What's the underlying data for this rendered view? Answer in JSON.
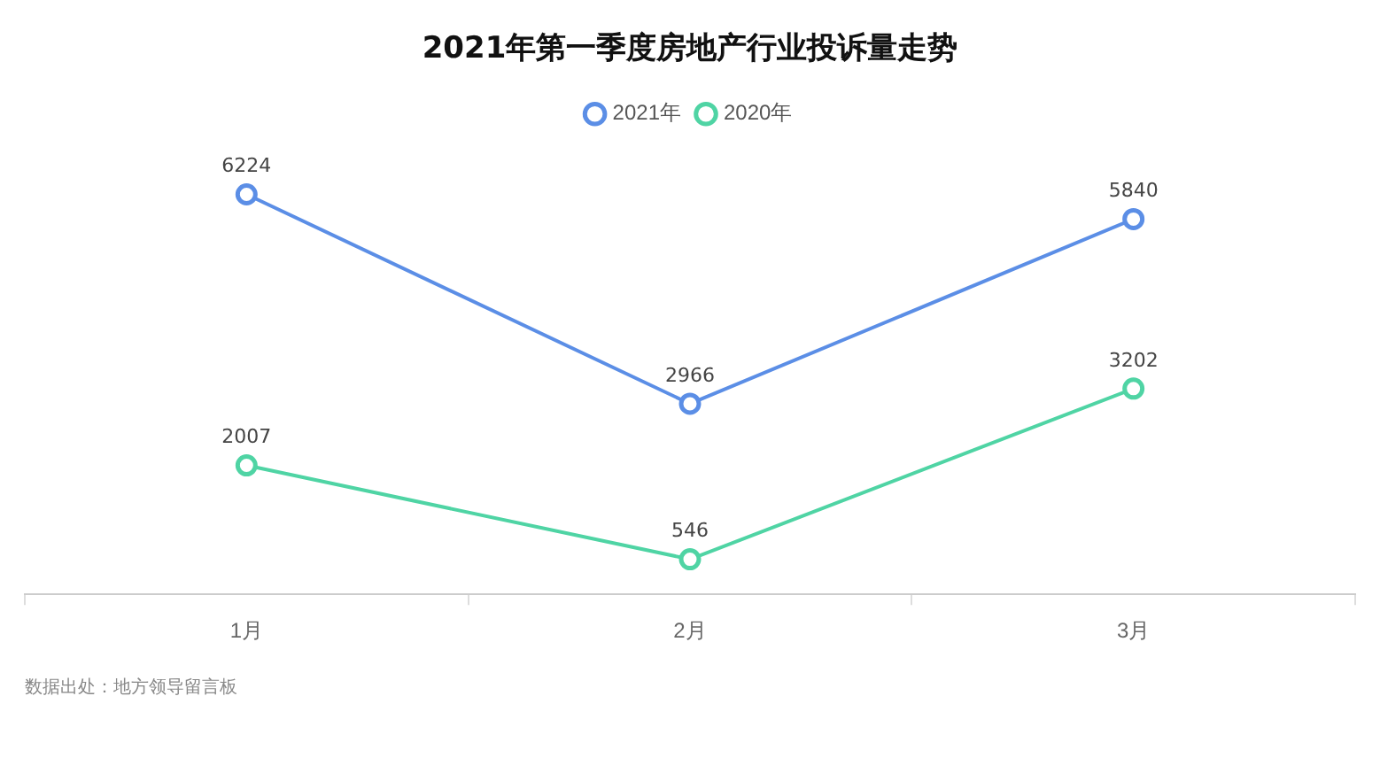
{
  "chart_data": {
    "type": "line",
    "title": "2021年第一季度房地产行业投诉量走势",
    "categories": [
      "1月",
      "2月",
      "3月"
    ],
    "series": [
      {
        "name": "2021年",
        "color": "#5b8ee6",
        "values": [
          6224,
          2966,
          5840
        ]
      },
      {
        "name": "2020年",
        "color": "#4fd4a4",
        "values": [
          2007,
          546,
          3202
        ]
      }
    ],
    "data_labels": true,
    "legend": "top",
    "marker": "circle",
    "grid": false,
    "annotations": [
      "数据出处：地方领导留言板"
    ]
  }
}
